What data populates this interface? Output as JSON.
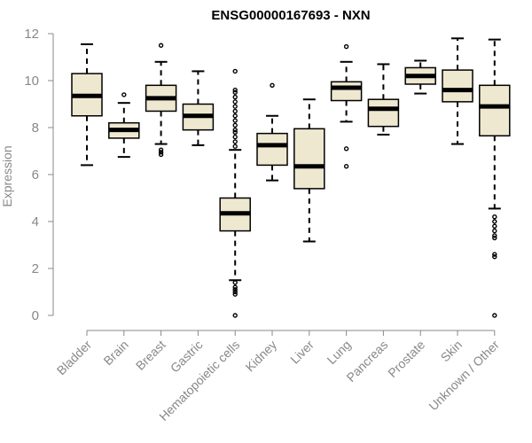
{
  "chart_data": {
    "type": "boxplot",
    "title": "ENSG00000167693 - NXN",
    "xlabel": "",
    "ylabel": "Expression",
    "ylim": [
      0,
      12
    ],
    "yticks": [
      0,
      2,
      4,
      6,
      8,
      10,
      12
    ],
    "grid": false,
    "colors": {
      "box_fill": "#efe8d0",
      "stroke": "#000000",
      "axis": "#888888"
    },
    "categories": [
      "Bladder",
      "Brain",
      "Breast",
      "Gastric",
      "Hematopoietic cells",
      "Kidney",
      "Liver",
      "Lung",
      "Pancreas",
      "Prostate",
      "Skin",
      "Unknown / Other"
    ],
    "boxes": [
      {
        "name": "Bladder",
        "whisker_low": 6.4,
        "q1": 8.5,
        "median": 9.35,
        "q3": 10.3,
        "whisker_high": 11.55,
        "outliers": []
      },
      {
        "name": "Brain",
        "whisker_low": 6.75,
        "q1": 7.55,
        "median": 7.9,
        "q3": 8.2,
        "whisker_high": 9.05,
        "outliers": [
          9.4
        ]
      },
      {
        "name": "Breast",
        "whisker_low": 7.3,
        "q1": 8.7,
        "median": 9.25,
        "q3": 9.8,
        "whisker_high": 10.8,
        "outliers": [
          11.5,
          7.05,
          6.95,
          6.85
        ]
      },
      {
        "name": "Gastric",
        "whisker_low": 7.25,
        "q1": 7.9,
        "median": 8.5,
        "q3": 9.0,
        "whisker_high": 10.4,
        "outliers": []
      },
      {
        "name": "Hematopoietic cells",
        "whisker_low": 1.5,
        "q1": 3.6,
        "median": 4.35,
        "q3": 5.0,
        "whisker_high": 7.05,
        "outliers": [
          10.4,
          9.6,
          9.5,
          9.3,
          9.1,
          8.9,
          8.7,
          8.5,
          8.3,
          8.1,
          7.9,
          7.8,
          7.6,
          7.4,
          7.2,
          1.4,
          1.2,
          1.1,
          1.0,
          0.9,
          0.0
        ]
      },
      {
        "name": "Kidney",
        "whisker_low": 5.75,
        "q1": 6.4,
        "median": 7.25,
        "q3": 7.75,
        "whisker_high": 8.5,
        "outliers": [
          9.8
        ]
      },
      {
        "name": "Liver",
        "whisker_low": 3.15,
        "q1": 5.4,
        "median": 6.35,
        "q3": 7.95,
        "whisker_high": 9.2,
        "outliers": []
      },
      {
        "name": "Lung",
        "whisker_low": 8.25,
        "q1": 9.15,
        "median": 9.7,
        "q3": 9.95,
        "whisker_high": 10.8,
        "outliers": [
          11.45,
          7.1,
          6.35
        ]
      },
      {
        "name": "Pancreas",
        "whisker_low": 7.7,
        "q1": 8.05,
        "median": 8.8,
        "q3": 9.2,
        "whisker_high": 10.7,
        "outliers": []
      },
      {
        "name": "Prostate",
        "whisker_low": 9.45,
        "q1": 9.85,
        "median": 10.2,
        "q3": 10.55,
        "whisker_high": 10.85,
        "outliers": []
      },
      {
        "name": "Skin",
        "whisker_low": 7.3,
        "q1": 9.1,
        "median": 9.6,
        "q3": 10.45,
        "whisker_high": 11.8,
        "outliers": []
      },
      {
        "name": "Unknown / Other",
        "whisker_low": 4.55,
        "q1": 7.65,
        "median": 8.9,
        "q3": 9.8,
        "whisker_high": 11.75,
        "outliers": [
          4.2,
          4.0,
          3.8,
          3.6,
          3.4,
          3.3,
          2.6,
          2.5,
          0.0
        ]
      }
    ]
  }
}
